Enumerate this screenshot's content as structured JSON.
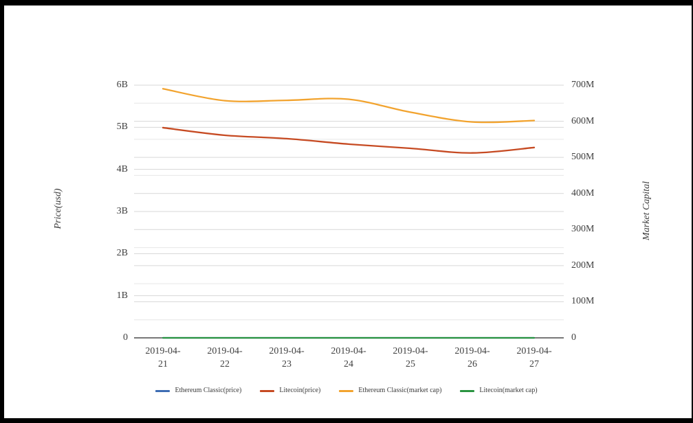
{
  "frame": {
    "border_color": "#000000",
    "background": "#ffffff"
  },
  "chart_data": {
    "type": "line",
    "x": [
      "2019-04-21",
      "2019-04-22",
      "2019-04-23",
      "2019-04-24",
      "2019-04-25",
      "2019-04-26",
      "2019-04-27"
    ],
    "series": [
      {
        "name": "Ethereum Classic(price)",
        "axis": "left",
        "color": "#3d6cb3",
        "values": [
          0,
          0,
          0,
          0,
          0,
          0,
          0
        ]
      },
      {
        "name": "Litecoin(price)",
        "axis": "left",
        "color": "#c64a22",
        "values": [
          4.99,
          4.81,
          4.73,
          4.6,
          4.5,
          4.39,
          4.52
        ]
      },
      {
        "name": "Ethereum Classic(market cap)",
        "axis": "right",
        "color": "#f2a32e",
        "values": [
          690,
          657,
          658,
          661,
          625,
          598,
          602
        ]
      },
      {
        "name": "Litecoin(market cap)",
        "axis": "right",
        "color": "#2a9440",
        "values": [
          0,
          0,
          0,
          0,
          0,
          0,
          0
        ]
      }
    ],
    "left_axis": {
      "title": "Price(usd)",
      "unit": "B",
      "max": 6,
      "tick_step": 1,
      "tick_labels": [
        "0",
        "1B",
        "2B",
        "3B",
        "4B",
        "5B",
        "6B"
      ]
    },
    "right_axis": {
      "title": "Market Capital",
      "unit": "M",
      "max": 700,
      "tick_step": 100,
      "minor_step": 50,
      "tick_labels": [
        "0",
        "100M",
        "200M",
        "300M",
        "400M",
        "500M",
        "600M",
        "700M"
      ]
    },
    "legend_position": "bottom",
    "grid": true
  },
  "styles": {
    "text_color": "#3f3f3f",
    "grid_major": "#d7d7d7",
    "grid_minor": "#e6e6e6",
    "axis_line": "#4a4a4a"
  }
}
